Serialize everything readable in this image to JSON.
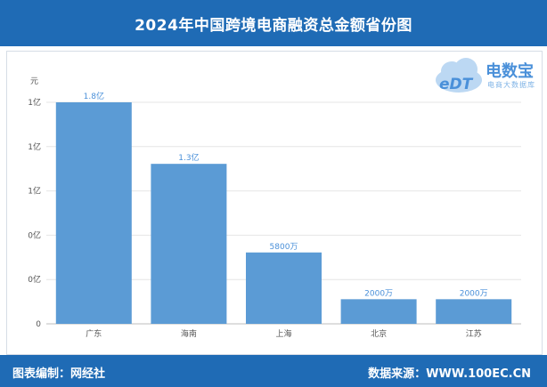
{
  "title": "2024年中国跨境电商融资总金额省份图",
  "logo": {
    "brand": "电数宝",
    "sub": "电商大数据库"
  },
  "footer": {
    "left": "图表编制：网经社",
    "right": "数据来源：WWW.100EC.CN"
  },
  "chart_data": {
    "type": "bar",
    "title": "2024年中国跨境电商融资总金额省份图",
    "ylabel": "元",
    "xlabel": "",
    "categories": [
      "广东",
      "海南",
      "上海",
      "北京",
      "江苏"
    ],
    "values": [
      180000000,
      130000000,
      58000000,
      20000000,
      20000000
    ],
    "data_labels": [
      "1.8亿",
      "1.3亿",
      "5800万",
      "2000万",
      "2000万"
    ],
    "y_ticks": [
      "0",
      "0亿",
      "0亿",
      "1亿",
      "1亿",
      "1亿"
    ],
    "ylim": [
      0,
      180000000
    ],
    "grid": true,
    "bar_color": "#5b9bd5"
  }
}
